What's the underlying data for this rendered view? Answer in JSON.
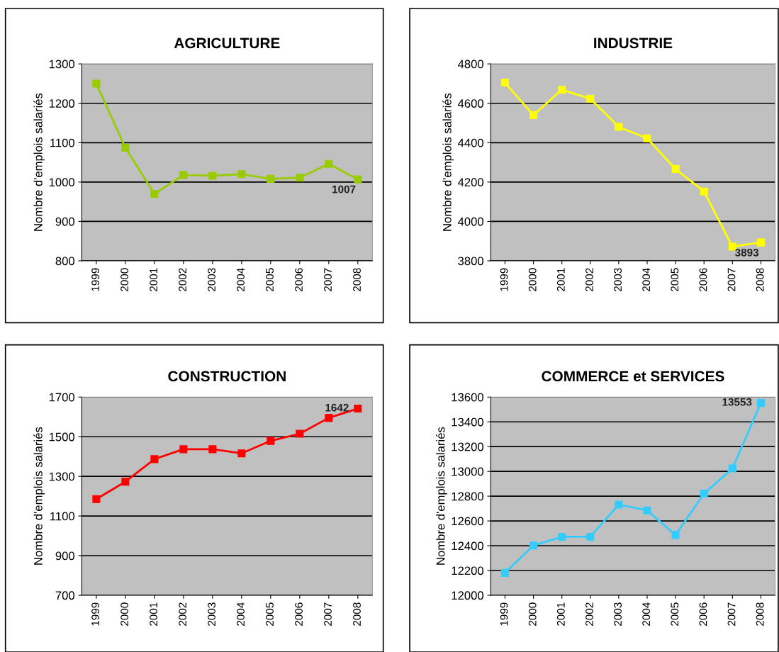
{
  "chart_data": [
    {
      "type": "line",
      "title": "AGRICULTURE",
      "ylabel": "Nombre d'emplois salariés",
      "categories": [
        "1999",
        "2000",
        "2001",
        "2002",
        "2003",
        "2004",
        "2005",
        "2006",
        "2007",
        "2008"
      ],
      "series": [
        {
          "color": "#99cc00",
          "values": [
            1250,
            1087,
            970,
            1018,
            1016,
            1020,
            1008,
            1011,
            1046,
            1007
          ],
          "value_labels": [
            null,
            null,
            null,
            null,
            null,
            null,
            null,
            null,
            null,
            "1007"
          ]
        }
      ],
      "ylim": [
        800,
        1300
      ],
      "yticks": [
        800,
        900,
        1000,
        1100,
        1200,
        1300
      ],
      "grid": "y",
      "marker": "square",
      "legend": false
    },
    {
      "type": "line",
      "title": "INDUSTRIE",
      "ylabel": "Nombre d'emplois salariés",
      "categories": [
        "1999",
        "2000",
        "2001",
        "2002",
        "2003",
        "2004",
        "2005",
        "2006",
        "2007",
        "2008"
      ],
      "series": [
        {
          "color": "#ffff00",
          "values": [
            4705,
            4540,
            4669,
            4623,
            4480,
            4422,
            4266,
            4152,
            3872,
            3893
          ],
          "value_labels": [
            null,
            null,
            null,
            null,
            null,
            null,
            null,
            null,
            null,
            "3893"
          ]
        }
      ],
      "ylim": [
        3800,
        4800
      ],
      "yticks": [
        3800,
        4000,
        4200,
        4400,
        4600,
        4800
      ],
      "grid": "y",
      "marker": "square",
      "legend": false
    },
    {
      "type": "line",
      "title": "CONSTRUCTION",
      "ylabel": "Nombre d'emplois salariés",
      "categories": [
        "1999",
        "2000",
        "2001",
        "2002",
        "2003",
        "2004",
        "2005",
        "2006",
        "2007",
        "2008"
      ],
      "series": [
        {
          "color": "#ff0000",
          "values": [
            1185,
            1273,
            1387,
            1437,
            1437,
            1416,
            1479,
            1515,
            1595,
            1642
          ],
          "value_labels": [
            null,
            null,
            null,
            null,
            null,
            null,
            null,
            null,
            null,
            "1642"
          ]
        }
      ],
      "ylim": [
        700,
        1700
      ],
      "yticks": [
        700,
        900,
        1100,
        1300,
        1500,
        1700
      ],
      "grid": "y",
      "marker": "square",
      "legend": false
    },
    {
      "type": "line",
      "title": "COMMERCE et SERVICES",
      "ylabel": "Nombre d'emplois salariés",
      "categories": [
        "1999",
        "2000",
        "2001",
        "2002",
        "2003",
        "2004",
        "2005",
        "2006",
        "2007",
        "2008"
      ],
      "series": [
        {
          "color": "#33ccff",
          "values": [
            12181,
            12402,
            12472,
            12472,
            12732,
            12685,
            12487,
            12821,
            13024,
            13553
          ],
          "value_labels": [
            null,
            null,
            null,
            null,
            null,
            null,
            null,
            null,
            null,
            "13553"
          ]
        }
      ],
      "ylim": [
        12000,
        13600
      ],
      "yticks": [
        12000,
        12200,
        12400,
        12600,
        12800,
        13000,
        13200,
        13400,
        13600
      ],
      "grid": "y",
      "marker": "square",
      "legend": false
    }
  ]
}
